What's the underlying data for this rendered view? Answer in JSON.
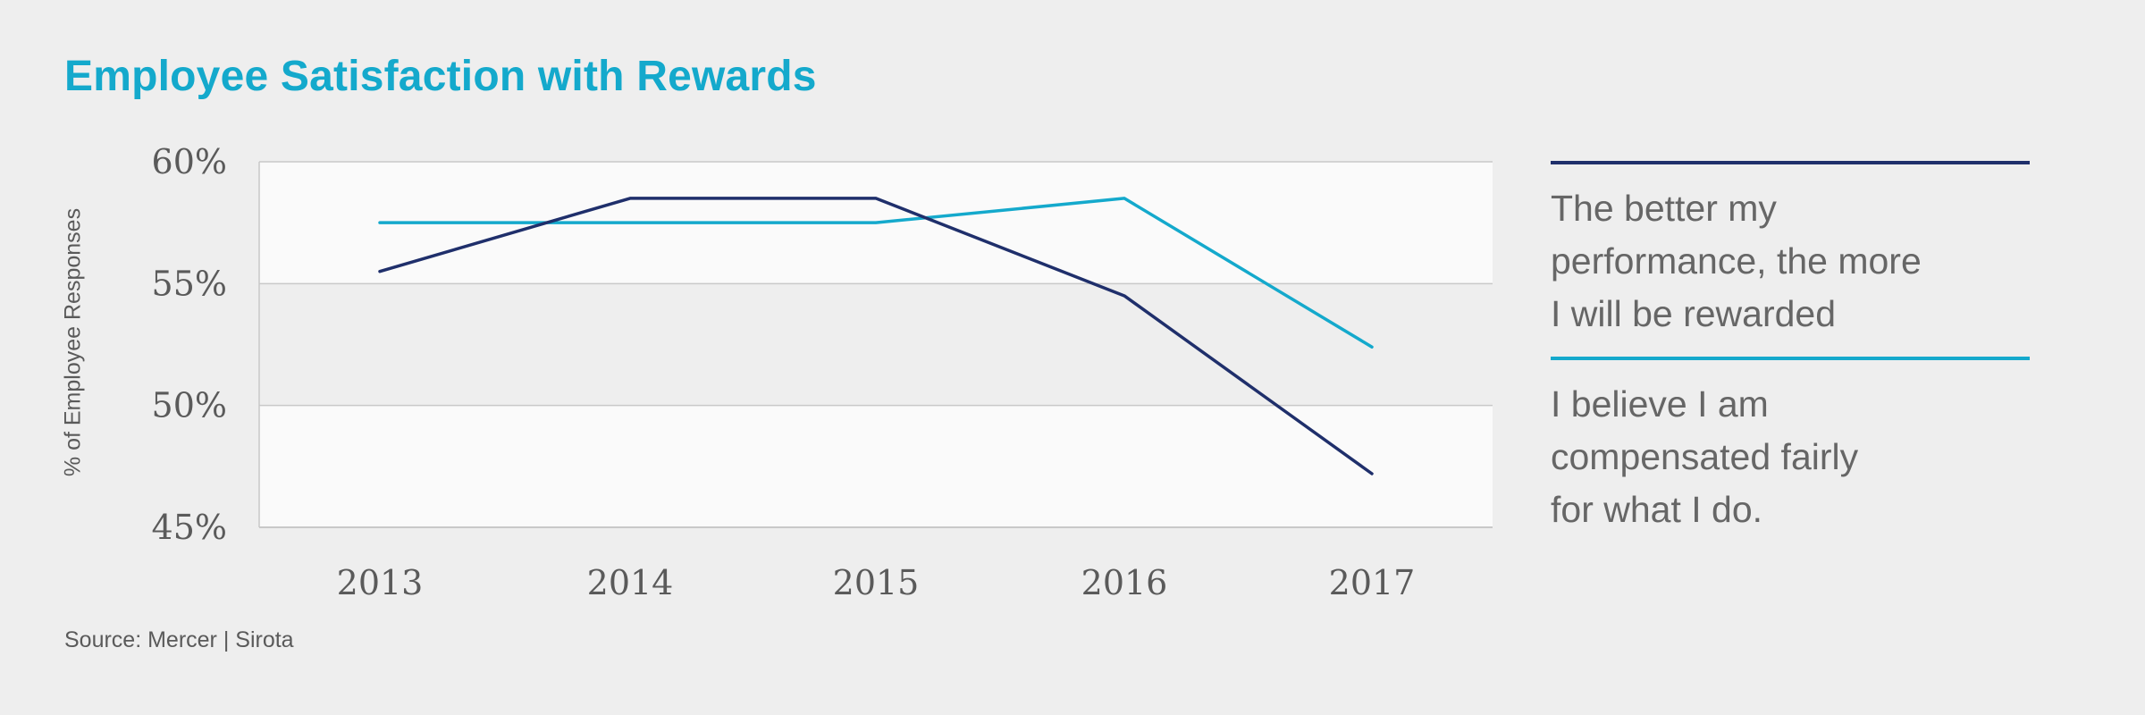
{
  "title": "Employee Satisfaction with Rewards",
  "source": "Source: Mercer | Sirota",
  "legend": [
    {
      "line1": "The better my",
      "line2": "performance, the more",
      "line3": "I will be rewarded",
      "color": "#1f2f6b"
    },
    {
      "line1": "I believe I am",
      "line2": "compensated fairly",
      "line3": "for what I do.",
      "color": "#14a9cc"
    }
  ],
  "chart_data": {
    "type": "line",
    "categories": [
      "2013",
      "2014",
      "2015",
      "2016",
      "2017"
    ],
    "series": [
      {
        "name": "The better my performance, the more I will be rewarded",
        "color": "#1f2f6b",
        "values": [
          55.5,
          58.5,
          58.5,
          54.5,
          47.2
        ]
      },
      {
        "name": "I believe I am compensated fairly for what I do.",
        "color": "#14a9cc",
        "values": [
          57.5,
          57.5,
          57.5,
          58.5,
          52.4
        ]
      }
    ],
    "ylabel": "% of Employee Responses",
    "ylim": [
      45,
      60
    ],
    "yticks": [
      "60%",
      "55%",
      "50%",
      "45%"
    ],
    "ytick_values": [
      60,
      55,
      50,
      45
    ],
    "grid": true,
    "legend_placement": "right"
  }
}
